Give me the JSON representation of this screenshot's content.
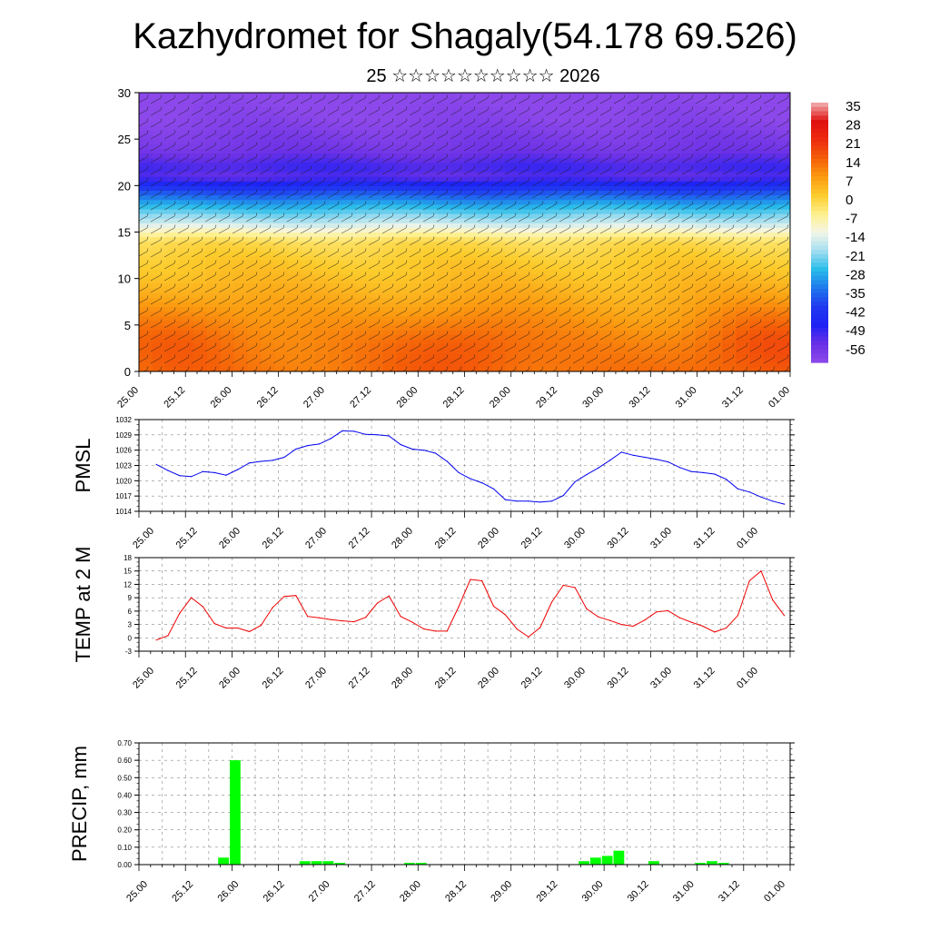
{
  "title": "Kazhydromet for Shagaly(54.178 69.526)",
  "subtitle": "25 ☆☆☆☆☆☆☆☆☆☆ 2026",
  "x_tick_labels": [
    "25.00",
    "25.12",
    "26.00",
    "26.12",
    "27.00",
    "27.12",
    "28.00",
    "28.12",
    "29.00",
    "29.12",
    "30.00",
    "30.12",
    "31.00",
    "31.12",
    "01.00"
  ],
  "colorbar": {
    "labels": [
      "35",
      "28",
      "21",
      "14",
      "7",
      "0",
      "-7",
      "-14",
      "-21",
      "-28",
      "-35",
      "-42",
      "-49",
      "-56"
    ],
    "stops": [
      {
        "v": 35,
        "c": "#f2b3b3"
      },
      {
        "v": 28,
        "c": "#e01010"
      },
      {
        "v": 21,
        "c": "#ee2a10"
      },
      {
        "v": 14,
        "c": "#f45e08"
      },
      {
        "v": 7,
        "c": "#fb9a10"
      },
      {
        "v": 0,
        "c": "#fccc2c"
      },
      {
        "v": -7,
        "c": "#fef08c"
      },
      {
        "v": -14,
        "c": "#f4f6e8"
      },
      {
        "v": -21,
        "c": "#a2def0"
      },
      {
        "v": -28,
        "c": "#28bcea"
      },
      {
        "v": -35,
        "c": "#1f78ec"
      },
      {
        "v": -42,
        "c": "#2038f0"
      },
      {
        "v": -49,
        "c": "#1e22f4"
      },
      {
        "v": -56,
        "c": "#6a30e6"
      },
      {
        "v": -63,
        "c": "#8c48ea"
      }
    ]
  },
  "chart_data": [
    {
      "type": "heatmap",
      "name": "temperature-height section",
      "ylim": [
        0,
        30
      ],
      "yticks": [
        "0",
        "5",
        "10",
        "15",
        "20",
        "25",
        "30"
      ],
      "x_range_hours": [
        0,
        168
      ],
      "profile_heights": [
        0,
        3,
        6,
        9,
        12,
        14,
        15,
        16,
        18,
        20,
        21,
        22,
        24,
        27,
        30
      ],
      "profile_temps": [
        11,
        9,
        6,
        3,
        0,
        -3,
        -10,
        -18,
        -30,
        -45,
        -55,
        -52,
        -58,
        -62,
        -64
      ],
      "hotspots": [
        {
          "hour": 12,
          "height": 4,
          "delta": 5
        },
        {
          "hour": 84,
          "height": 3,
          "delta": 6
        },
        {
          "hour": 162,
          "height": 3,
          "delta": 7
        }
      ],
      "wind_barbs": true
    },
    {
      "type": "line",
      "ylabel": "PMSL",
      "ylim": [
        1014,
        1032
      ],
      "yticks": [
        "1014",
        "1017",
        "1020",
        "1023",
        "1026",
        "1029",
        "1032"
      ],
      "color": "#0000ee",
      "x_hours": [
        0,
        3,
        6,
        9,
        12,
        15,
        18,
        21,
        24,
        27,
        30,
        33,
        36,
        39,
        42,
        45,
        48,
        51,
        54,
        57,
        60,
        63,
        66,
        69,
        72,
        75,
        78,
        81,
        84,
        87,
        90,
        93,
        96,
        99,
        102,
        105,
        108,
        111,
        114,
        117,
        120,
        123,
        126,
        129,
        132,
        135,
        138,
        141,
        144,
        147,
        150,
        153,
        156,
        159,
        162
      ],
      "values": [
        1023.2,
        1022.0,
        1021.0,
        1020.8,
        1021.8,
        1021.6,
        1021.1,
        1022.2,
        1023.5,
        1023.8,
        1024.0,
        1024.6,
        1026.2,
        1026.9,
        1027.2,
        1028.3,
        1029.8,
        1029.7,
        1029.1,
        1029.0,
        1028.8,
        1027.1,
        1026.2,
        1026.0,
        1025.4,
        1023.8,
        1021.6,
        1020.4,
        1019.6,
        1018.4,
        1016.3,
        1016.0,
        1016.0,
        1015.8,
        1016.0,
        1017.1,
        1019.8,
        1021.2,
        1022.5,
        1024.0,
        1025.6,
        1025.0,
        1024.6,
        1024.2,
        1023.7,
        1022.6,
        1021.8,
        1021.6,
        1021.3,
        1020.3,
        1018.4,
        1017.8,
        1016.8,
        1016.0,
        1015.4
      ]
    },
    {
      "type": "line",
      "ylabel": "TEMP at 2 M",
      "ylim": [
        -3,
        18
      ],
      "yticks": [
        "-3",
        "0",
        "3",
        "6",
        "9",
        "12",
        "15",
        "18"
      ],
      "color": "#ee0000",
      "x_hours": [
        0,
        3,
        6,
        9,
        12,
        15,
        18,
        21,
        24,
        27,
        30,
        33,
        36,
        39,
        42,
        45,
        48,
        51,
        54,
        57,
        60,
        63,
        66,
        69,
        72,
        75,
        78,
        81,
        84,
        87,
        90,
        93,
        96,
        99,
        102,
        105,
        108,
        111,
        114,
        117,
        120,
        123,
        126,
        129,
        132,
        135,
        138,
        141,
        144,
        147,
        150,
        153,
        156,
        159,
        162
      ],
      "values": [
        -0.5,
        0.5,
        5.5,
        9.0,
        7.0,
        3.2,
        2.2,
        2.2,
        1.4,
        2.8,
        6.8,
        9.3,
        9.5,
        4.8,
        4.5,
        4.1,
        3.8,
        3.6,
        4.6,
        7.8,
        9.4,
        4.8,
        3.5,
        2.0,
        1.5,
        1.5,
        7.0,
        13.1,
        12.8,
        7.1,
        5.2,
        2.0,
        0.2,
        2.3,
        8.0,
        11.8,
        11.3,
        6.5,
        4.7,
        3.9,
        3.0,
        2.6,
        4.0,
        5.8,
        6.1,
        4.5,
        3.5,
        2.6,
        1.3,
        2.2,
        5.0,
        12.8,
        15.0,
        8.5,
        5.0
      ]
    },
    {
      "type": "bar",
      "ylabel": "PRECIP, mm",
      "ylim": [
        0,
        0.7
      ],
      "yticks": [
        "0.00",
        "0.10",
        "0.20",
        "0.30",
        "0.40",
        "0.50",
        "0.60",
        "0.70"
      ],
      "color": "#00ff00",
      "x_hours": [
        21,
        24,
        42,
        45,
        48,
        51,
        69,
        72,
        114,
        117,
        120,
        123,
        126,
        132,
        144,
        147,
        150
      ],
      "values": [
        0.04,
        0.6,
        0.02,
        0.02,
        0.02,
        0.01,
        0.01,
        0.01,
        0.02,
        0.04,
        0.05,
        0.08,
        0.0,
        0.02,
        0.01,
        0.02,
        0.01
      ]
    }
  ]
}
